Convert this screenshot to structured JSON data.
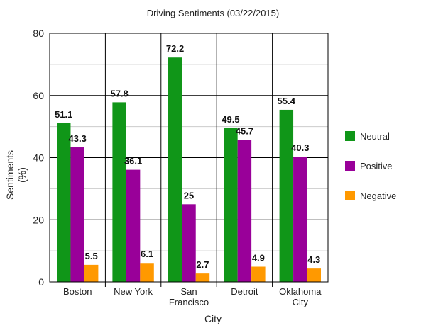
{
  "chart_data": {
    "type": "bar",
    "title": "Driving Sentiments (03/22/2015)",
    "xlabel": "City",
    "ylabel": "Sentiments",
    "ylabel_unit": "(%)",
    "ylim": [
      0,
      80
    ],
    "yticks": [
      0,
      20,
      40,
      60,
      80
    ],
    "grid": true,
    "legend_position": "right",
    "categories": [
      [
        "Boston"
      ],
      [
        "New York"
      ],
      [
        "San",
        "Francisco"
      ],
      [
        "Detroit"
      ],
      [
        "Oklahoma",
        "City"
      ]
    ],
    "series": [
      {
        "name": "Neutral",
        "color": "#109618",
        "values": [
          51.1,
          57.8,
          72.2,
          49.5,
          55.4
        ],
        "labels": [
          "51.1",
          "57.8",
          "72.2",
          "49.5",
          "55.4"
        ]
      },
      {
        "name": "Positive",
        "color": "#990099",
        "values": [
          43.3,
          36.1,
          25,
          45.7,
          40.3
        ],
        "labels": [
          "43.3",
          "36.1",
          "25",
          "45.7",
          "40.3"
        ]
      },
      {
        "name": "Negative",
        "color": "#FF9900",
        "values": [
          5.5,
          6.1,
          2.7,
          4.9,
          4.3
        ],
        "labels": [
          "5.5",
          "6.1",
          "2.7",
          "4.9",
          "4.3"
        ]
      }
    ]
  }
}
